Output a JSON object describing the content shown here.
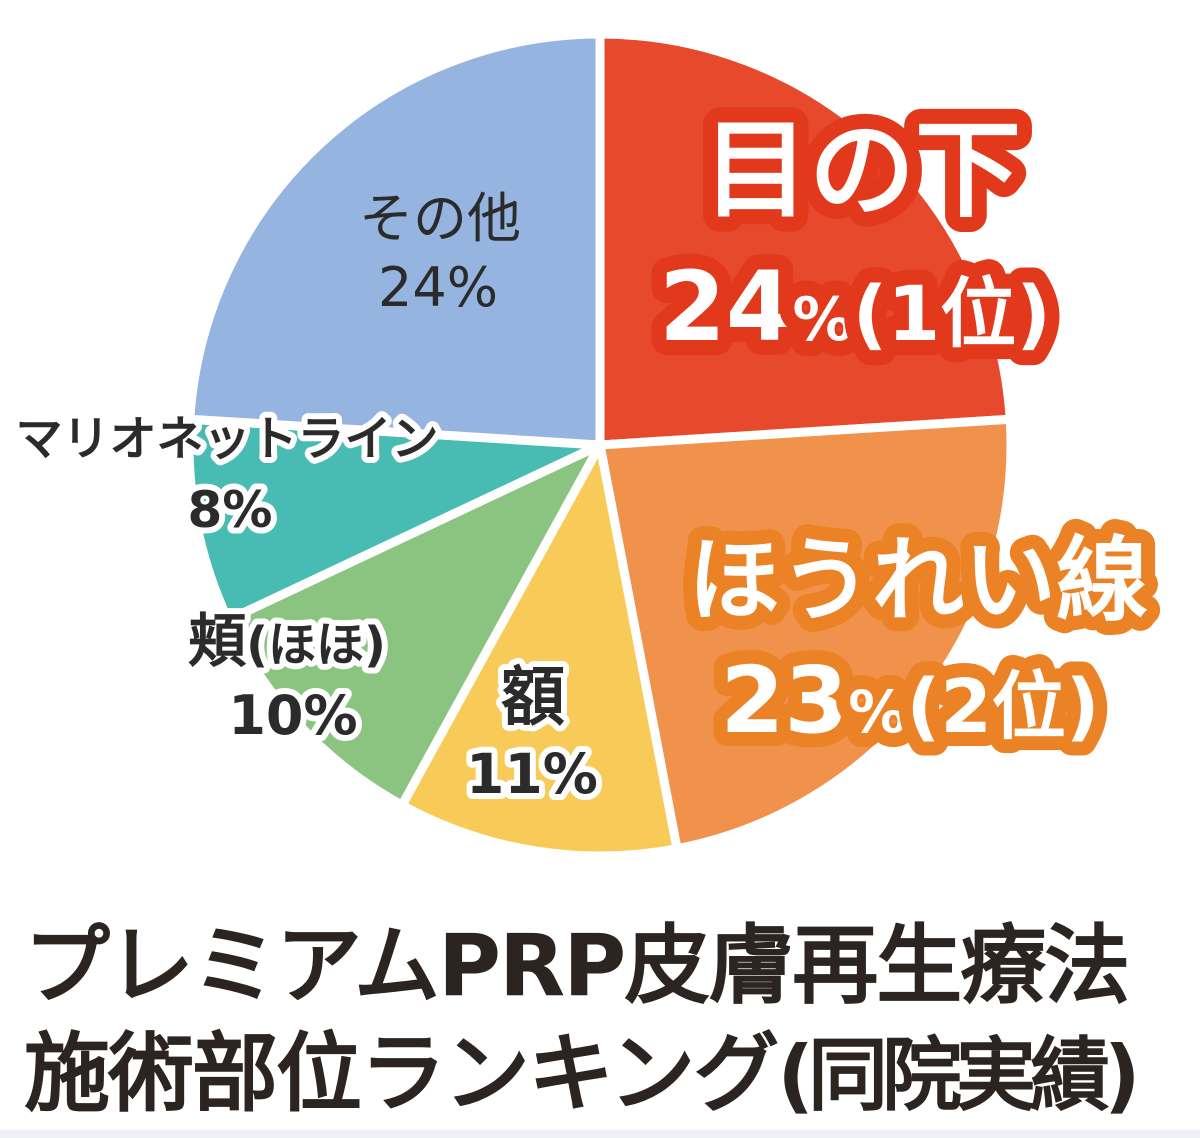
{
  "chart_data": {
    "type": "pie",
    "title": "プレミアムPRP皮膚再生療法 施術部位ランキング(同院実績)",
    "direction": "clockwise",
    "start_angle": "12-oclock",
    "legend_position": "labels-on-slices",
    "segments": [
      {
        "name": "under-eye",
        "label": "目の下",
        "value": 24,
        "value_text": "24",
        "percent_sign": "%",
        "rank_text": "(1位)",
        "color": "#e6492c",
        "label_style": "white-with-red-outline"
      },
      {
        "name": "nasolabial-line",
        "label": "ほうれい線",
        "value": 23,
        "value_text": "23",
        "percent_sign": "%",
        "rank_text": "(2位)",
        "color": "#f0914c",
        "label_style": "white-with-orange-outline"
      },
      {
        "name": "forehead",
        "label": "額",
        "value": 11,
        "value_text": "11%",
        "color": "#f8ca57",
        "label_style": "black-with-white-outline"
      },
      {
        "name": "cheek",
        "label": "頬",
        "label_paren": "(ほほ)",
        "value": 10,
        "value_text": "10%",
        "color": "#8bc481",
        "label_style": "black-with-white-outline"
      },
      {
        "name": "marionette-line",
        "label": "マリオネットライン",
        "value": 8,
        "value_text": "8%",
        "color": "#48bcb2",
        "label_style": "black-with-white-outline"
      },
      {
        "name": "other",
        "label": "その他",
        "value": 24,
        "value_text": "24%",
        "color": "#95b4df",
        "label_style": "plain-black"
      }
    ]
  },
  "title": {
    "line1": "プレミアムPRP皮膚再生療法",
    "line2_main": "施術部位ランキング",
    "line2_paren": "(同院実績)"
  },
  "colors": {
    "red_slice": "#e6492c",
    "red_text_outline": "#e2381c",
    "orange_slice": "#f0914c",
    "orange_text_outline": "#ec8226",
    "yellow_slice": "#f8ca57",
    "green_slice": "#8bc481",
    "teal_slice": "#48bcb2",
    "blue_slice": "#95b4df",
    "title_text": "#2b2421",
    "background": "#ffffff"
  }
}
